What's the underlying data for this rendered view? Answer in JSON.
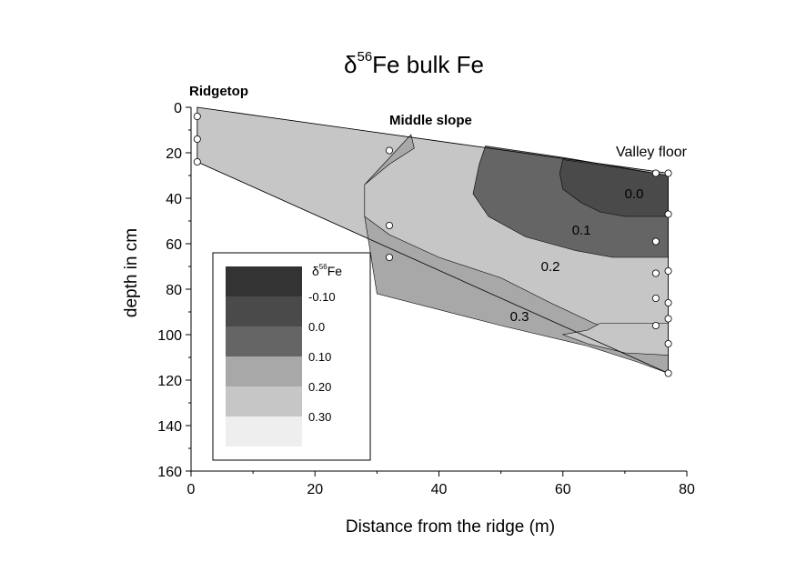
{
  "chart_data": {
    "type": "contour",
    "title": {
      "delta": "δ",
      "superscript": "56",
      "text": "Fe bulk Fe"
    },
    "xlabel": "Distance from the ridge (m)",
    "ylabel": "depth in cm",
    "xlim": [
      0,
      80
    ],
    "ylim": [
      160,
      0
    ],
    "y_inverted": true,
    "x_ticks": [
      "0",
      "20",
      "40",
      "60",
      "80"
    ],
    "y_ticks": [
      "0",
      "20",
      "40",
      "60",
      "80",
      "100",
      "120",
      "140",
      "160"
    ],
    "x_tick_values": [
      0,
      20,
      40,
      60,
      80
    ],
    "y_tick_values": [
      0,
      20,
      40,
      60,
      80,
      100,
      120,
      140,
      160
    ],
    "annotations": {
      "ridgetop": "Ridgetop",
      "middle_slope": "Middle slope",
      "valley_floor": "Valley floor"
    },
    "contour_labels": [
      {
        "text": "0.0",
        "x": 71.5,
        "y": 40
      },
      {
        "text": "0.1",
        "x": 63,
        "y": 56
      },
      {
        "text": "0.2",
        "x": 58,
        "y": 72
      },
      {
        "text": "0.3",
        "x": 53,
        "y": 94
      }
    ],
    "legend": {
      "title_delta": "δ",
      "title_superscript": "56",
      "title_text": "Fe",
      "position": "lower-left",
      "levels": [
        {
          "label": "-0.10",
          "color": "#333333"
        },
        {
          "label": "0.0",
          "color": "#4a4a4a"
        },
        {
          "label": "0.10",
          "color": "#656565"
        },
        {
          "label": "0.20",
          "color": "#a8a8a8"
        },
        {
          "label": "0.30",
          "color": "#c6c6c6"
        },
        {
          "label": "",
          "color": "#eeeeee"
        }
      ]
    },
    "sample_points": [
      {
        "x": 1,
        "y": 4
      },
      {
        "x": 1,
        "y": 14
      },
      {
        "x": 1,
        "y": 24
      },
      {
        "x": 32,
        "y": 19
      },
      {
        "x": 32,
        "y": 52
      },
      {
        "x": 32,
        "y": 66
      },
      {
        "x": 75,
        "y": 29
      },
      {
        "x": 77,
        "y": 29
      },
      {
        "x": 77,
        "y": 47
      },
      {
        "x": 75,
        "y": 59
      },
      {
        "x": 75,
        "y": 73
      },
      {
        "x": 77,
        "y": 72
      },
      {
        "x": 75,
        "y": 84
      },
      {
        "x": 77,
        "y": 86
      },
      {
        "x": 77,
        "y": 93
      },
      {
        "x": 75,
        "y": 96
      },
      {
        "x": 77,
        "y": 104
      },
      {
        "x": 77,
        "y": 117
      }
    ],
    "regions": [
      {
        "name": "0.30 zone",
        "color": "#c6c6c6",
        "polygon": [
          [
            1,
            0
          ],
          [
            77,
            29
          ],
          [
            77,
            117
          ],
          [
            1,
            24
          ]
        ]
      },
      {
        "name": "0.20 zone",
        "color": "#a8a8a8",
        "polygon": [
          [
            35.5,
            12
          ],
          [
            36,
            18
          ],
          [
            32,
            25
          ],
          [
            28,
            34
          ],
          [
            28,
            48
          ],
          [
            32,
            56
          ],
          [
            40,
            66
          ],
          [
            50,
            75
          ],
          [
            58,
            86
          ],
          [
            65,
            95
          ],
          [
            70,
            99
          ],
          [
            75,
            100
          ],
          [
            77,
            101
          ],
          [
            77,
            117
          ],
          [
            72,
            112
          ],
          [
            64,
            105
          ],
          [
            50,
            96
          ],
          [
            30,
            82
          ],
          [
            28,
            48
          ],
          [
            28,
            34
          ]
        ]
      },
      {
        "name": "0.10 zone",
        "color": "#656565",
        "polygon": [
          [
            47.5,
            17
          ],
          [
            46.5,
            25
          ],
          [
            45.5,
            38
          ],
          [
            48,
            48
          ],
          [
            54,
            57
          ],
          [
            62,
            63
          ],
          [
            68,
            66
          ],
          [
            77,
            66
          ],
          [
            77,
            30
          ],
          [
            60,
            22
          ],
          [
            47.5,
            17
          ]
        ]
      },
      {
        "name": "0.0 zone",
        "color": "#4a4a4a",
        "polygon": [
          [
            60,
            23
          ],
          [
            59.5,
            29
          ],
          [
            60,
            36
          ],
          [
            63,
            42
          ],
          [
            66,
            46
          ],
          [
            70,
            48
          ],
          [
            77,
            48
          ],
          [
            77,
            30
          ],
          [
            70,
            27
          ],
          [
            60,
            23
          ]
        ]
      },
      {
        "name": "0.30 lower lens",
        "color": "#c6c6c6",
        "polygon": [
          [
            66,
            95
          ],
          [
            77,
            95
          ],
          [
            77,
            109
          ],
          [
            70,
            108
          ],
          [
            64,
            104
          ],
          [
            60,
            100
          ],
          [
            64,
            98
          ]
        ]
      }
    ]
  }
}
